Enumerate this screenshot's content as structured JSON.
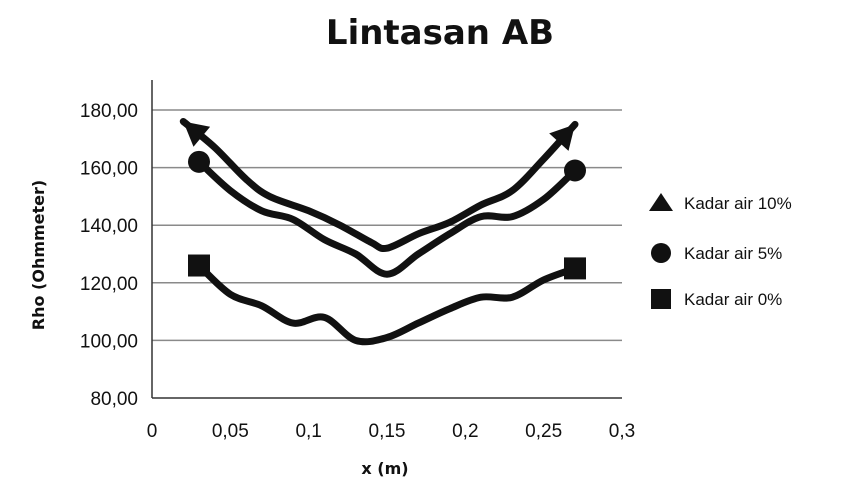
{
  "chart_data": {
    "type": "line",
    "title": "Lintasan AB",
    "xlabel": "x (m)",
    "ylabel": "Rho (Ohmmeter)",
    "xlim": [
      0,
      0.3
    ],
    "ylim": [
      80,
      180
    ],
    "x_ticks": [
      "0",
      "0,05",
      "0,1",
      "0,15",
      "0,2",
      "0,25",
      "0,3"
    ],
    "x_tick_values": [
      0,
      0.05,
      0.1,
      0.15,
      0.2,
      0.25,
      0.3
    ],
    "y_ticks": [
      "80,00",
      "100,00",
      "120,00",
      "140,00",
      "160,00",
      "180,00"
    ],
    "y_tick_values": [
      80,
      100,
      120,
      140,
      160,
      180
    ],
    "grid": "horizontal",
    "legend_position": "right",
    "series": [
      {
        "name": "Kadar air 10%",
        "marker": "triangle",
        "marker_style": "arrow-ends",
        "color": "#111111",
        "points": [
          [
            0.02,
            176
          ],
          [
            0.04,
            167
          ],
          [
            0.06,
            156
          ],
          [
            0.075,
            150
          ],
          [
            0.1,
            145
          ],
          [
            0.12,
            140
          ],
          [
            0.14,
            134
          ],
          [
            0.15,
            132
          ],
          [
            0.17,
            137
          ],
          [
            0.19,
            141
          ],
          [
            0.21,
            147
          ],
          [
            0.23,
            152
          ],
          [
            0.25,
            163
          ],
          [
            0.27,
            175
          ]
        ]
      },
      {
        "name": "Kadar air 5%",
        "marker": "circle",
        "color": "#111111",
        "points": [
          [
            0.03,
            162
          ],
          [
            0.05,
            152
          ],
          [
            0.07,
            145
          ],
          [
            0.09,
            142
          ],
          [
            0.11,
            135
          ],
          [
            0.13,
            130
          ],
          [
            0.15,
            123
          ],
          [
            0.17,
            130
          ],
          [
            0.19,
            137
          ],
          [
            0.21,
            143
          ],
          [
            0.23,
            143
          ],
          [
            0.25,
            149
          ],
          [
            0.27,
            159
          ]
        ]
      },
      {
        "name": "Kadar air 0%",
        "marker": "square",
        "color": "#111111",
        "points": [
          [
            0.03,
            126
          ],
          [
            0.05,
            116
          ],
          [
            0.07,
            112
          ],
          [
            0.09,
            106
          ],
          [
            0.11,
            108
          ],
          [
            0.13,
            100
          ],
          [
            0.15,
            101
          ],
          [
            0.17,
            106
          ],
          [
            0.19,
            111
          ],
          [
            0.21,
            115
          ],
          [
            0.23,
            115
          ],
          [
            0.25,
            121
          ],
          [
            0.27,
            125
          ]
        ]
      }
    ]
  }
}
